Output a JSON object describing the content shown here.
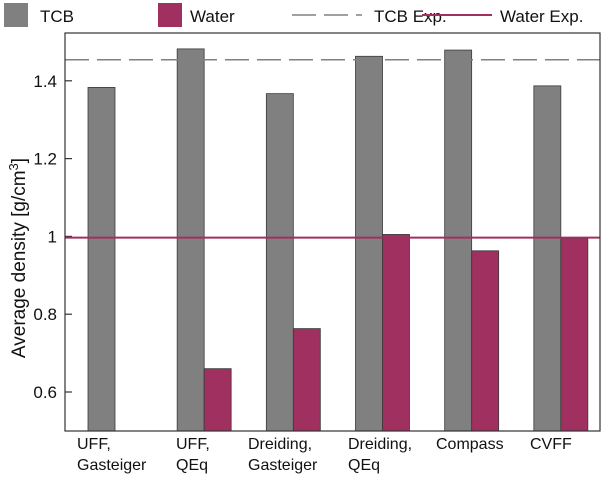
{
  "chart_data": {
    "type": "bar",
    "title": "",
    "xlabel": "",
    "ylabel": "Average density [g/cm",
    "ylabel_superscript": "3",
    "ylabel_suffix": "]",
    "ylim": [
      0.5,
      1.55
    ],
    "yticks": [
      0.6,
      0.8,
      1,
      1.2,
      1.4
    ],
    "ytick_labels": [
      "0.6",
      "0.8",
      "1",
      "1.2",
      "1.4"
    ],
    "categories": [
      [
        "UFF,",
        "Gasteiger"
      ],
      [
        "UFF,",
        "QEq"
      ],
      [
        "Dreiding,",
        "Gasteiger"
      ],
      [
        "Dreiding,",
        "QEq"
      ],
      [
        "Compass"
      ],
      [
        "CVFF"
      ]
    ],
    "series": [
      {
        "name": "TCB",
        "color": "#808080",
        "values": [
          1.383,
          1.482,
          1.367,
          1.463,
          1.479,
          1.387
        ]
      },
      {
        "name": "Water",
        "color": "#a0305f",
        "values": [
          null,
          0.66,
          0.763,
          1.005,
          0.963,
          0.995
        ]
      }
    ],
    "reference_lines": [
      {
        "name": "TCB Exp.",
        "value": 1.454,
        "style": "dashed",
        "color": "#808080"
      },
      {
        "name": "Water Exp.",
        "value": 0.997,
        "style": "solid",
        "color": "#a0305f"
      }
    ],
    "legend": {
      "placement": "top",
      "entries": [
        "TCB",
        "Water",
        "TCB Exp.",
        "Water Exp."
      ]
    }
  }
}
